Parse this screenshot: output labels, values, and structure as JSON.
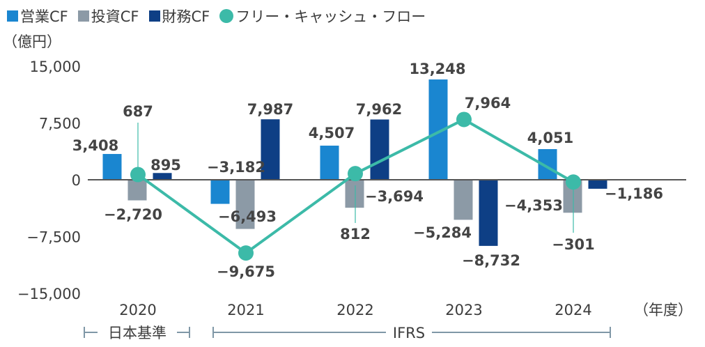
{
  "legend": {
    "operating": "営業CF",
    "investing": "投資CF",
    "financing": "財務CF",
    "fcf": "フリー・キャッシュ・フロー"
  },
  "unit_label": "（億円）",
  "x_unit_label": "（年度）",
  "standards": {
    "jgaap": "日本基準",
    "ifrs": "IFRS"
  },
  "colors": {
    "operating": "#1a86d0",
    "investing": "#8c9aa6",
    "financing": "#0e3f85",
    "fcf": "#3cbaa8",
    "axis": "#555555"
  },
  "chart_data": {
    "type": "bar",
    "categories": [
      "2020",
      "2021",
      "2022",
      "2023",
      "2024"
    ],
    "series": [
      {
        "name": "営業CF",
        "values": [
          3408,
          -3182,
          4507,
          13248,
          4051
        ],
        "labels": [
          "3,408",
          "−3,182",
          "4,507",
          "13,248",
          "4,051"
        ]
      },
      {
        "name": "投資CF",
        "values": [
          -2720,
          -6493,
          -3694,
          -5284,
          -4353
        ],
        "labels": [
          "−2,720",
          "−6,493",
          "−3,694",
          "−5,284",
          "−4,353"
        ]
      },
      {
        "name": "財務CF",
        "values": [
          895,
          7987,
          7962,
          -8732,
          -1186
        ],
        "labels": [
          "895",
          "7,987",
          "7,962",
          "−8,732",
          "−1,186"
        ]
      },
      {
        "name": "フリー・キャッシュ・フロー",
        "type": "line",
        "values": [
          687,
          -9675,
          812,
          7964,
          -301
        ],
        "labels": [
          "687",
          "−9,675",
          "812",
          "7,964",
          "−301"
        ]
      }
    ],
    "yticks": [
      15000,
      7500,
      0,
      -7500,
      -15000
    ],
    "ytick_labels": [
      "15,000",
      "7,500",
      "0",
      "−7,500",
      "−15,000"
    ],
    "ylim": [
      -15000,
      15000
    ],
    "grid": false,
    "legend": "top-left"
  }
}
